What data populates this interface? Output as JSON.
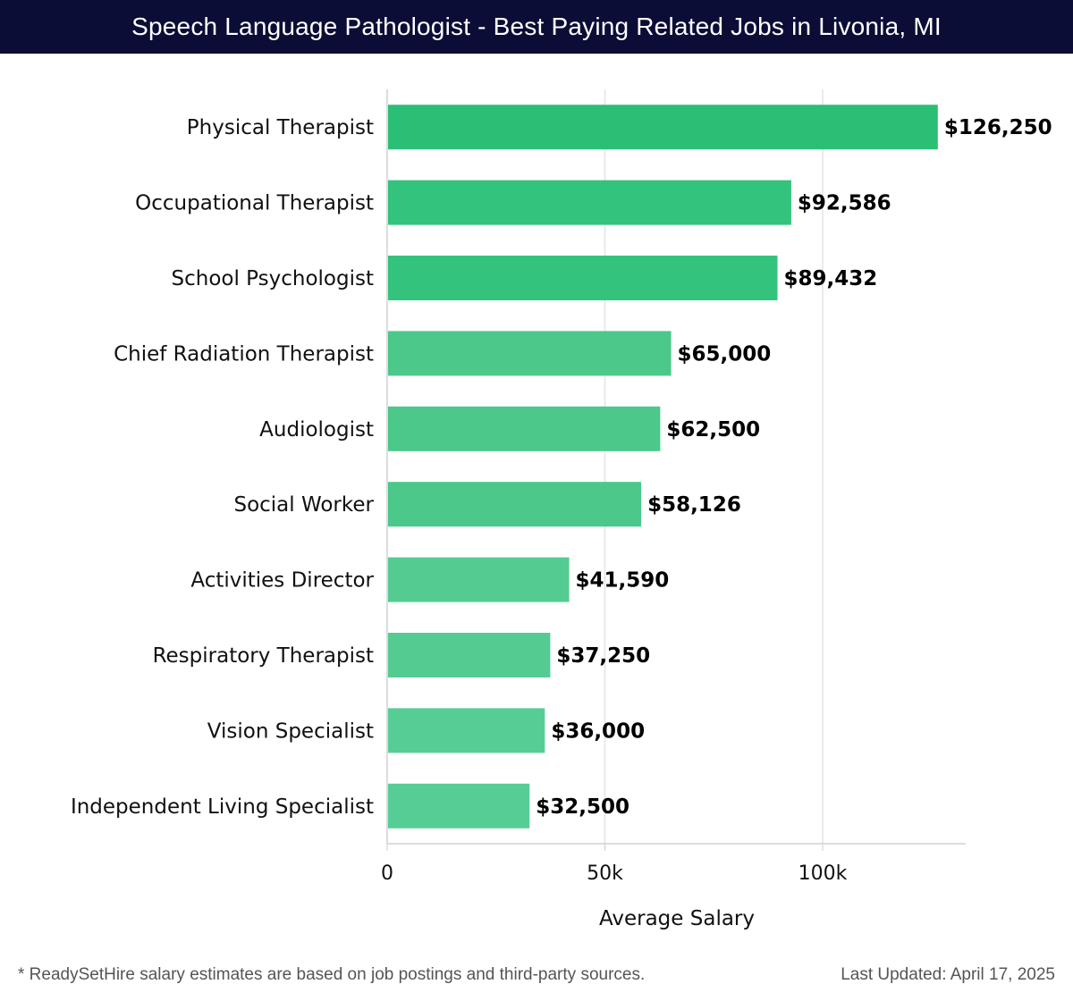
{
  "header": {
    "title": "Speech Language Pathologist - Best Paying Related Jobs in Livonia, MI"
  },
  "chart_data": {
    "type": "bar",
    "orientation": "horizontal",
    "title": "Speech Language Pathologist - Best Paying Related Jobs in Livonia, MI",
    "xlabel": "Average Salary",
    "ylabel": "",
    "xlim": [
      0,
      132500
    ],
    "xticks": [
      {
        "value": 0,
        "label": "0"
      },
      {
        "value": 50000,
        "label": "50k"
      },
      {
        "value": 100000,
        "label": "100k"
      }
    ],
    "grid": true,
    "categories": [
      "Physical Therapist",
      "Occupational Therapist",
      "School Psychologist",
      "Chief Radiation Therapist",
      "Audiologist",
      "Social Worker",
      "Activities Director",
      "Respiratory Therapist",
      "Vision Specialist",
      "Independent Living Specialist"
    ],
    "values": [
      126250,
      92586,
      89432,
      65000,
      62500,
      58126,
      41590,
      37250,
      36000,
      32500
    ],
    "labels": [
      "$126,250",
      "$92,586",
      "$89,432",
      "$65,000",
      "$62,500",
      "$58,126",
      "$41,590",
      "$37,250",
      "$36,000",
      "$32,500"
    ],
    "colors": [
      "#2bbf75",
      "#33c37c",
      "#33c37c",
      "#4bc88a",
      "#4bc88a",
      "#4bc88a",
      "#54cb91",
      "#54cb91",
      "#56cd95",
      "#56cd95"
    ]
  },
  "footer": {
    "note": "* ReadySetHire salary estimates are based on job postings and third-party sources.",
    "updated": "Last Updated: April 17, 2025"
  }
}
